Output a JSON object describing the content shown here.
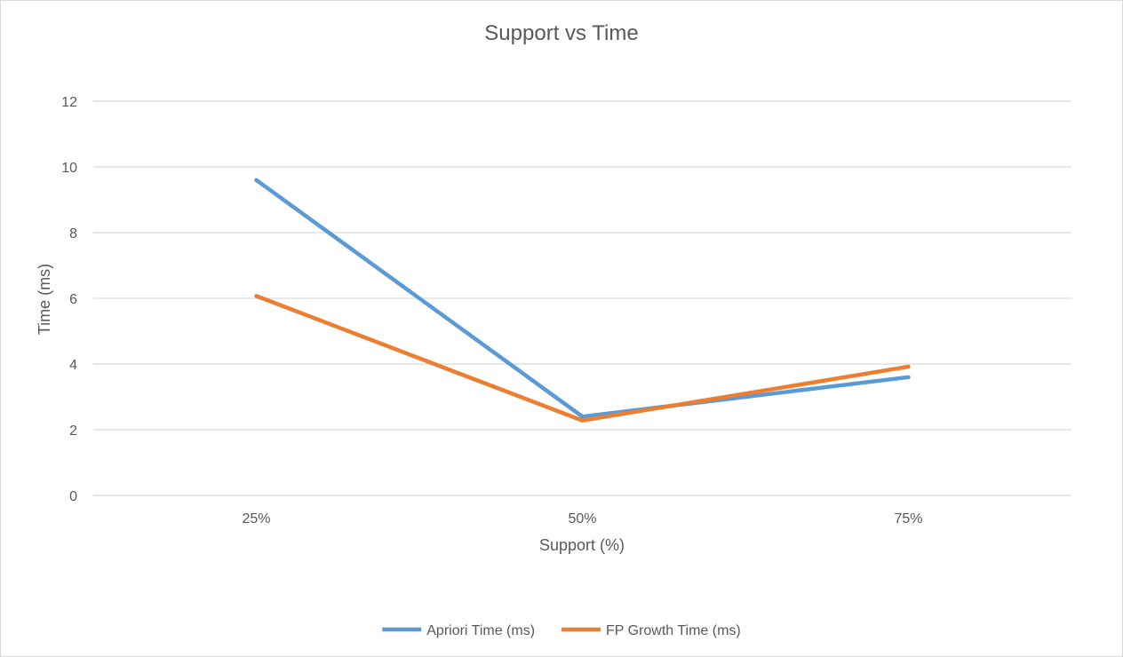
{
  "chart_data": {
    "type": "line",
    "title": "Support vs Time",
    "xlabel": "Support (%)",
    "ylabel": "Time (ms)",
    "categories": [
      "25%",
      "50%",
      "75%"
    ],
    "ylim": [
      0,
      12
    ],
    "yticks": [
      0,
      2,
      4,
      6,
      8,
      10,
      12
    ],
    "grid": true,
    "legend_position": "bottom",
    "series": [
      {
        "name": "Apriori Time (ms)",
        "values": [
          9.6,
          2.4,
          3.6
        ],
        "color": "#5b9bd5"
      },
      {
        "name": "FP Growth Time (ms)",
        "values": [
          6.07,
          2.28,
          3.92
        ],
        "color": "#ed7d31"
      }
    ]
  }
}
